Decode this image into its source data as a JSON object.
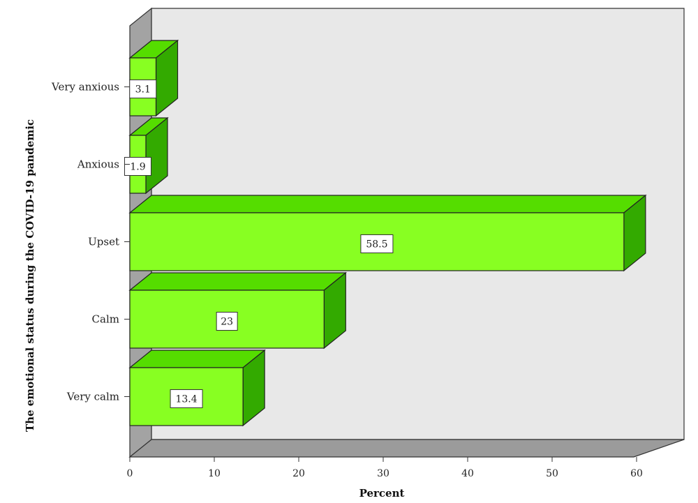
{
  "chart_data": {
    "type": "bar",
    "orientation": "horizontal",
    "style": "3d",
    "categories": [
      "Very anxious",
      "Anxious",
      "Upset",
      "Calm",
      "Very calm"
    ],
    "values": [
      3.1,
      1.9,
      58.5,
      23,
      13.4
    ],
    "value_labels": [
      "3.1",
      "1.9",
      "58.5",
      "23",
      "13.4"
    ],
    "xlabel": "Percent",
    "ylabel": "The emotional status during the COVID-19 pandemic",
    "xlim": [
      0,
      60
    ],
    "xticks": [
      "0",
      "10",
      "20",
      "30",
      "40",
      "50",
      "60"
    ],
    "grid": false,
    "colors": {
      "bar_front": "#88ff22",
      "bar_top": "#55dd00",
      "bar_side": "#33aa00",
      "back_wall": "#e8e8e8",
      "side_wall": "#a3a3a3",
      "floor": "#9b9b9b"
    }
  }
}
